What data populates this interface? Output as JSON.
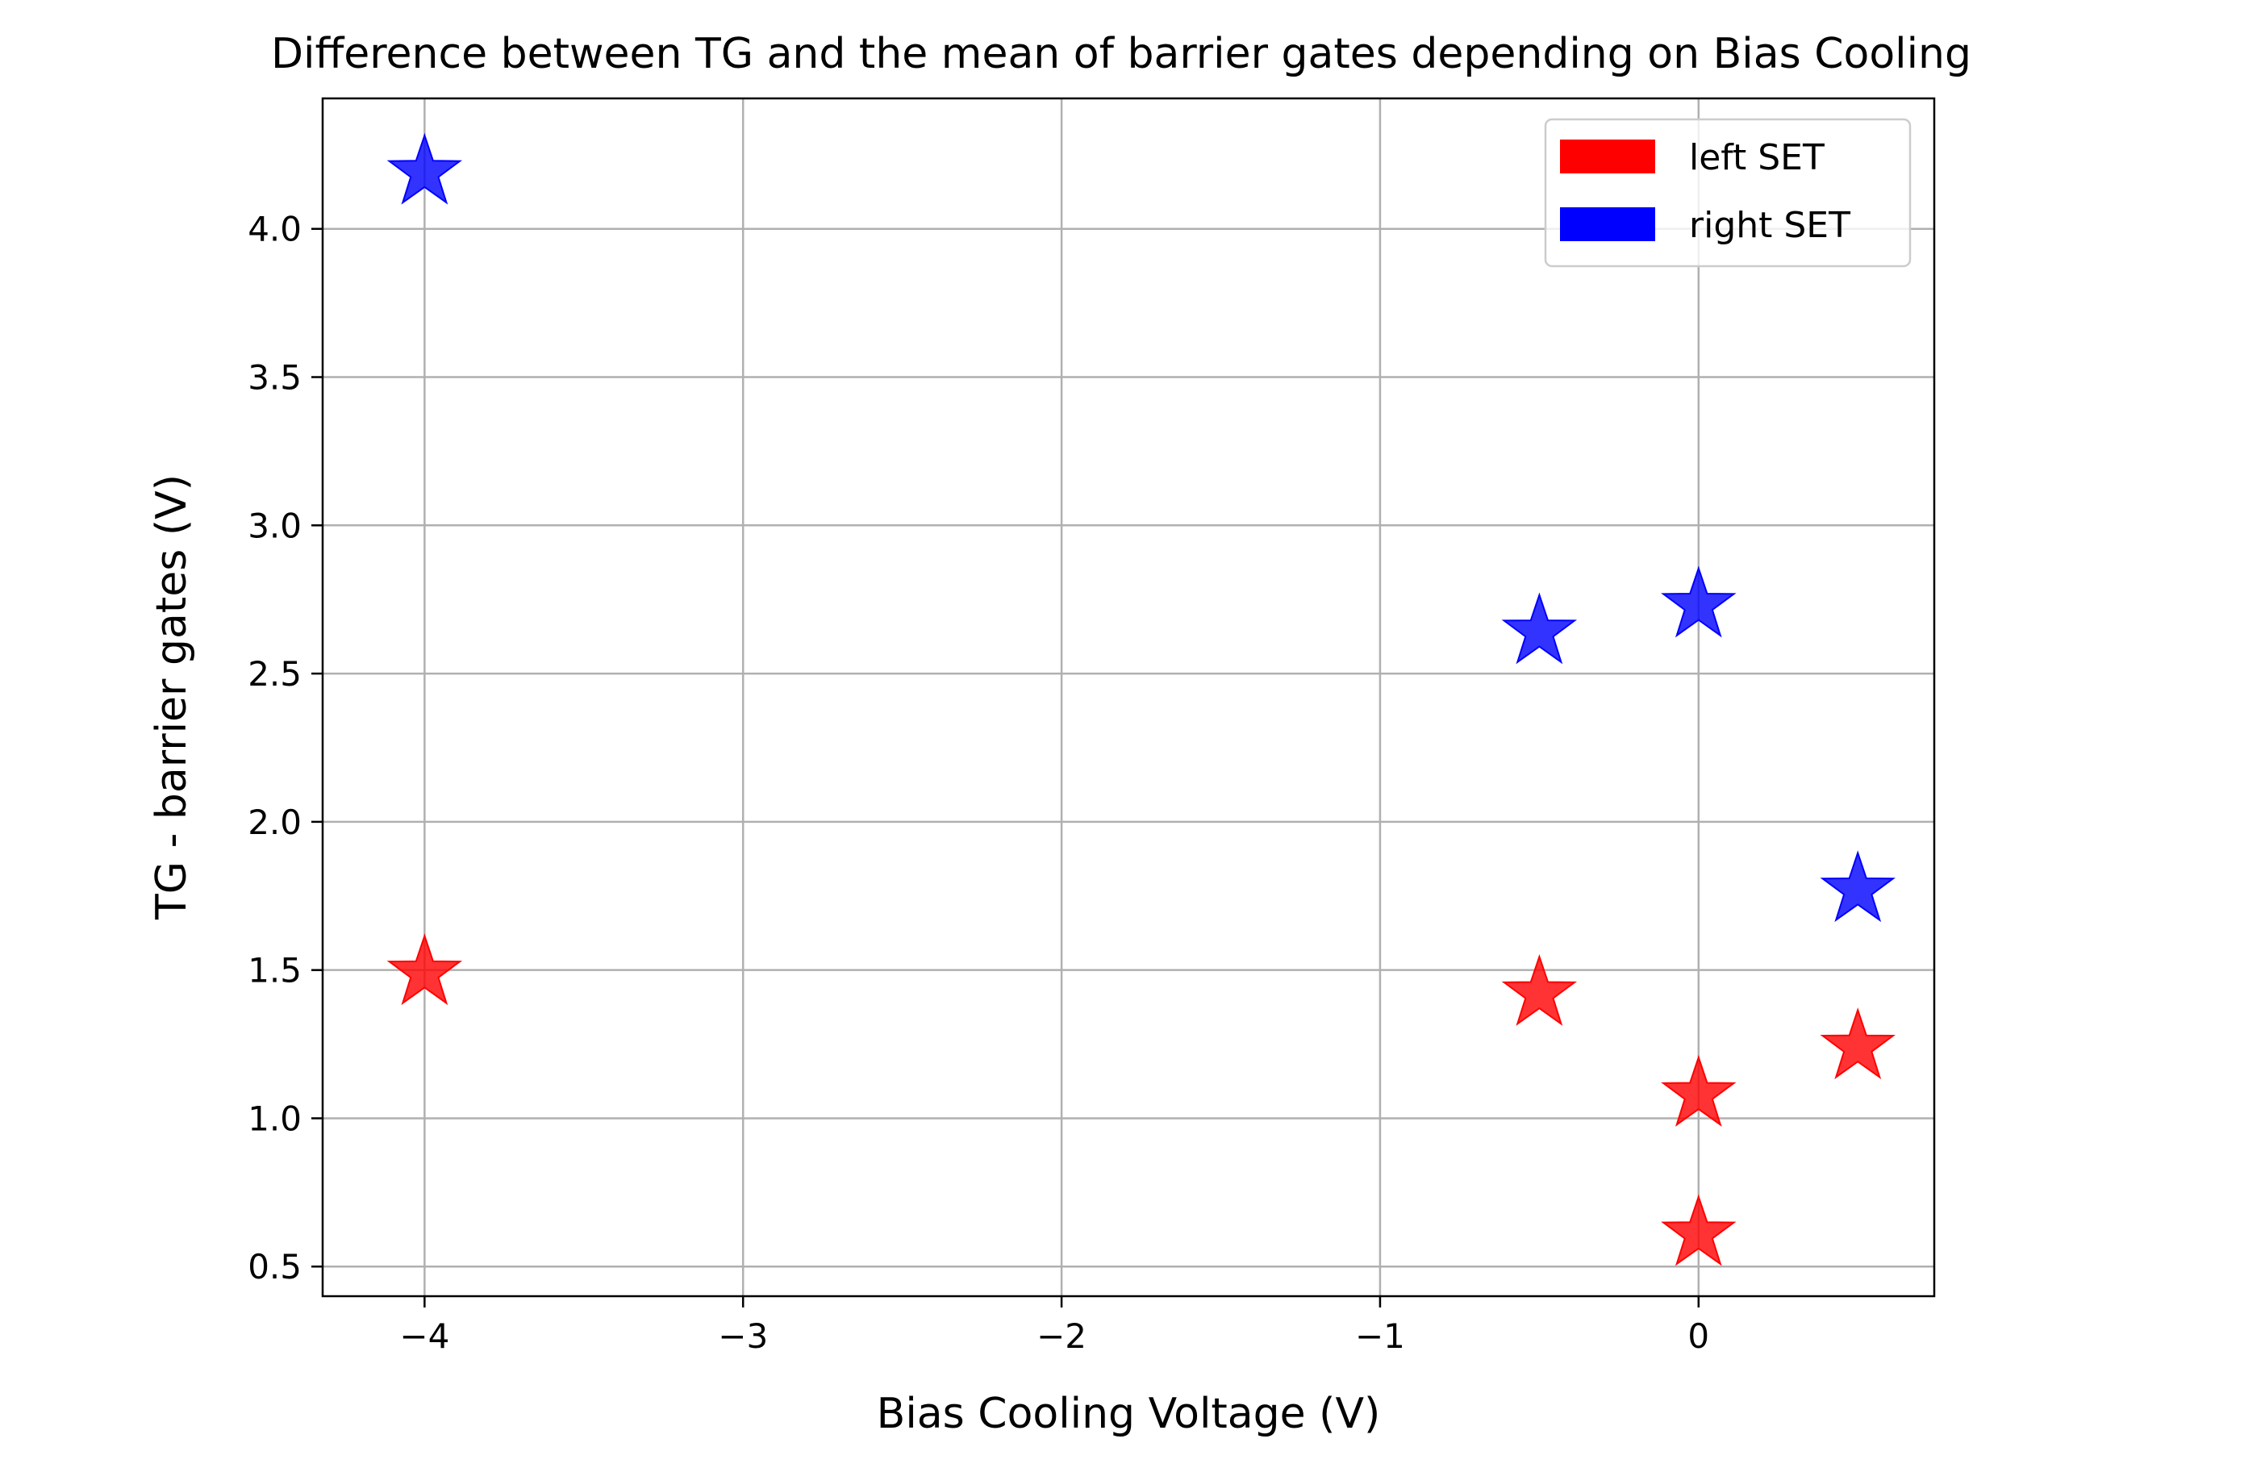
{
  "chart_data": {
    "type": "scatter",
    "title": "Difference between TG and the mean of barrier gates depending on Bias Cooling",
    "xlabel": "Bias Cooling Voltage (V)",
    "ylabel": "TG - barrier gates (V)",
    "xlim": [
      -4.32,
      0.74
    ],
    "ylim": [
      0.4,
      4.44
    ],
    "xticks": [
      -4,
      -3,
      -2,
      -1,
      0
    ],
    "xtick_labels": [
      "−4",
      "−3",
      "−2",
      "−1",
      "0"
    ],
    "yticks": [
      0.5,
      1.0,
      1.5,
      2.0,
      2.5,
      3.0,
      3.5,
      4.0
    ],
    "ytick_labels": [
      "0.5",
      "1.0",
      "1.5",
      "2.0",
      "2.5",
      "3.0",
      "3.5",
      "4.0"
    ],
    "grid": true,
    "legend_position": "top-right",
    "marker": "star",
    "series": [
      {
        "name": "left SET",
        "color": "#ff0000",
        "points": [
          {
            "x": -4.0,
            "y": 1.49
          },
          {
            "x": -0.5,
            "y": 1.42
          },
          {
            "x": 0.0,
            "y": 1.08
          },
          {
            "x": 0.0,
            "y": 0.61
          },
          {
            "x": 0.5,
            "y": 1.24
          }
        ]
      },
      {
        "name": "right SET",
        "color": "#0000ff",
        "points": [
          {
            "x": -4.0,
            "y": 4.19
          },
          {
            "x": -0.5,
            "y": 2.64
          },
          {
            "x": 0.0,
            "y": 2.73
          },
          {
            "x": 0.5,
            "y": 1.77
          }
        ]
      }
    ]
  }
}
